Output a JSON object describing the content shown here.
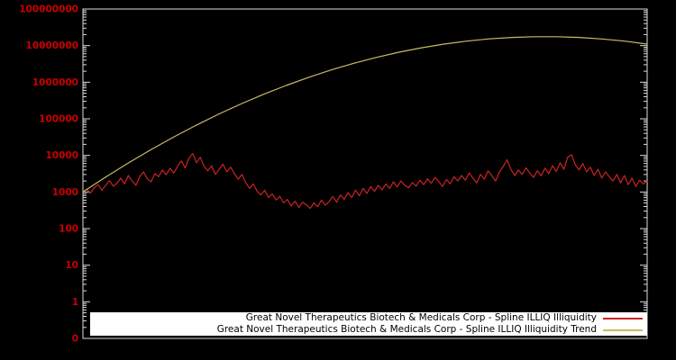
{
  "colors": {
    "background": "#000000",
    "frame": "#dcdcdc",
    "axis_labels": "#cc0000",
    "series_red": "#cc2222",
    "series_trend": "#c8bc64",
    "legend_background": "#ffffff",
    "legend_text": "#000000"
  },
  "chart_data": {
    "type": "line",
    "title": "",
    "xlabel": "",
    "ylabel": "",
    "y_scale": "log",
    "legend_position": "bottom",
    "grid": false,
    "y_axis": {
      "tick_labels": [
        "100000000",
        "10000000",
        "1000000",
        "100000",
        "10000",
        "1000",
        "100",
        "10",
        "1",
        "0"
      ],
      "max_exp": 8,
      "min_exp": -1
    },
    "series": [
      {
        "name": "Great Novel Therapeutics Biotech & Medicals Corp - Spline ILLIQ Illiquidity",
        "color": "#cc2222",
        "values": [
          1000,
          1202,
          933,
          1318,
          1585,
          1122,
          1514,
          2042,
          1445,
          1738,
          2399,
          1660,
          2818,
          1995,
          1514,
          2630,
          3548,
          2291,
          1905,
          3162,
          2630,
          3981,
          2951,
          4467,
          3311,
          5012,
          7079,
          4571,
          8318,
          11220,
          6310,
          8913,
          5012,
          3802,
          5248,
          3020,
          4169,
          5754,
          3548,
          4786,
          3162,
          2239,
          3020,
          1778,
          1259,
          1660,
          1047,
          832,
          1122,
          708,
          891,
          603,
          759,
          501,
          631,
          417,
          562,
          380,
          525,
          447,
          355,
          501,
          398,
          603,
          437,
          550,
          759,
          525,
          832,
          631,
          955,
          708,
          1122,
          794,
          1259,
          912,
          1413,
          1047,
          1514,
          1148,
          1660,
          1259,
          1905,
          1380,
          1995,
          1514,
          1318,
          1820,
          1445,
          2089,
          1585,
          2291,
          1738,
          2512,
          1905,
          1413,
          2188,
          1660,
          2630,
          1995,
          2818,
          2089,
          3311,
          2399,
          1778,
          3020,
          2239,
          3802,
          2754,
          1995,
          3548,
          5012,
          7586,
          4169,
          2818,
          3981,
          3020,
          4571,
          3311,
          2512,
          3802,
          2754,
          4467,
          3162,
          5248,
          3631,
          6310,
          4169,
          8913,
          10471,
          5623,
          3981,
          6026,
          3548,
          4786,
          2818,
          4169,
          2399,
          3548,
          2630,
          1995,
          3020,
          1778,
          2818,
          1585,
          2399,
          1413,
          2089,
          1660,
          1995
        ]
      },
      {
        "name": "Great Novel Therapeutics Biotech & Medicals Corp - Spline ILLIQ Illiquidity Trend",
        "color": "#c8bc64",
        "values": [
          1000,
          2537,
          6143,
          14200,
          31330,
          65950,
          132500,
          254400,
          465600,
          814200,
          1357000,
          2161000,
          3286000,
          4766000,
          6602000,
          8727000,
          11010000,
          13260000,
          15240000,
          16720000,
          17510000,
          17500000,
          16690000,
          15200000,
          13220000,
          10960000
        ]
      }
    ]
  },
  "legend": {
    "items": [
      {
        "label": "Great Novel Therapeutics Biotech & Medicals Corp - Spline ILLIQ Illiquidity"
      },
      {
        "label": "Great Novel Therapeutics Biotech & Medicals Corp - Spline ILLIQ Illiquidity Trend"
      }
    ]
  }
}
